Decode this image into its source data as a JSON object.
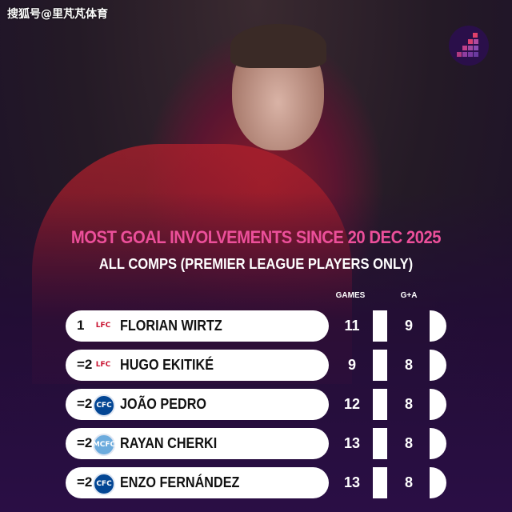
{
  "watermark": "搜狐号@里芃芃体育",
  "title": "MOST GOAL INVOLVEMENTS SINCE 20 DEC 2025",
  "subtitle": "ALL COMPS (PREMIER LEAGUE PLAYERS ONLY)",
  "columns": {
    "games": "GAMES",
    "ga": "G+A"
  },
  "colors": {
    "title": "#ec4f9a",
    "background": "#2a0e45"
  },
  "rows": [
    {
      "rank": "1",
      "crest": "LFC",
      "club_icon": "liverpool-crest-icon",
      "name": "FLORIAN WIRTZ",
      "games": "11",
      "ga": "9"
    },
    {
      "rank": "=2",
      "crest": "LFC",
      "club_icon": "liverpool-crest-icon",
      "name": "HUGO EKITIKÉ",
      "games": "9",
      "ga": "8"
    },
    {
      "rank": "=2",
      "crest": "CFC",
      "club_icon": "chelsea-crest-icon",
      "name": "JOÃO PEDRO",
      "games": "12",
      "ga": "8"
    },
    {
      "rank": "=2",
      "crest": "MCFC",
      "club_icon": "man-city-crest-icon",
      "name": "RAYAN CHERKI",
      "games": "13",
      "ga": "8"
    },
    {
      "rank": "=2",
      "crest": "CFC",
      "club_icon": "chelsea-crest-icon",
      "name": "ENZO FERNÁNDEZ",
      "games": "13",
      "ga": "8"
    }
  ]
}
